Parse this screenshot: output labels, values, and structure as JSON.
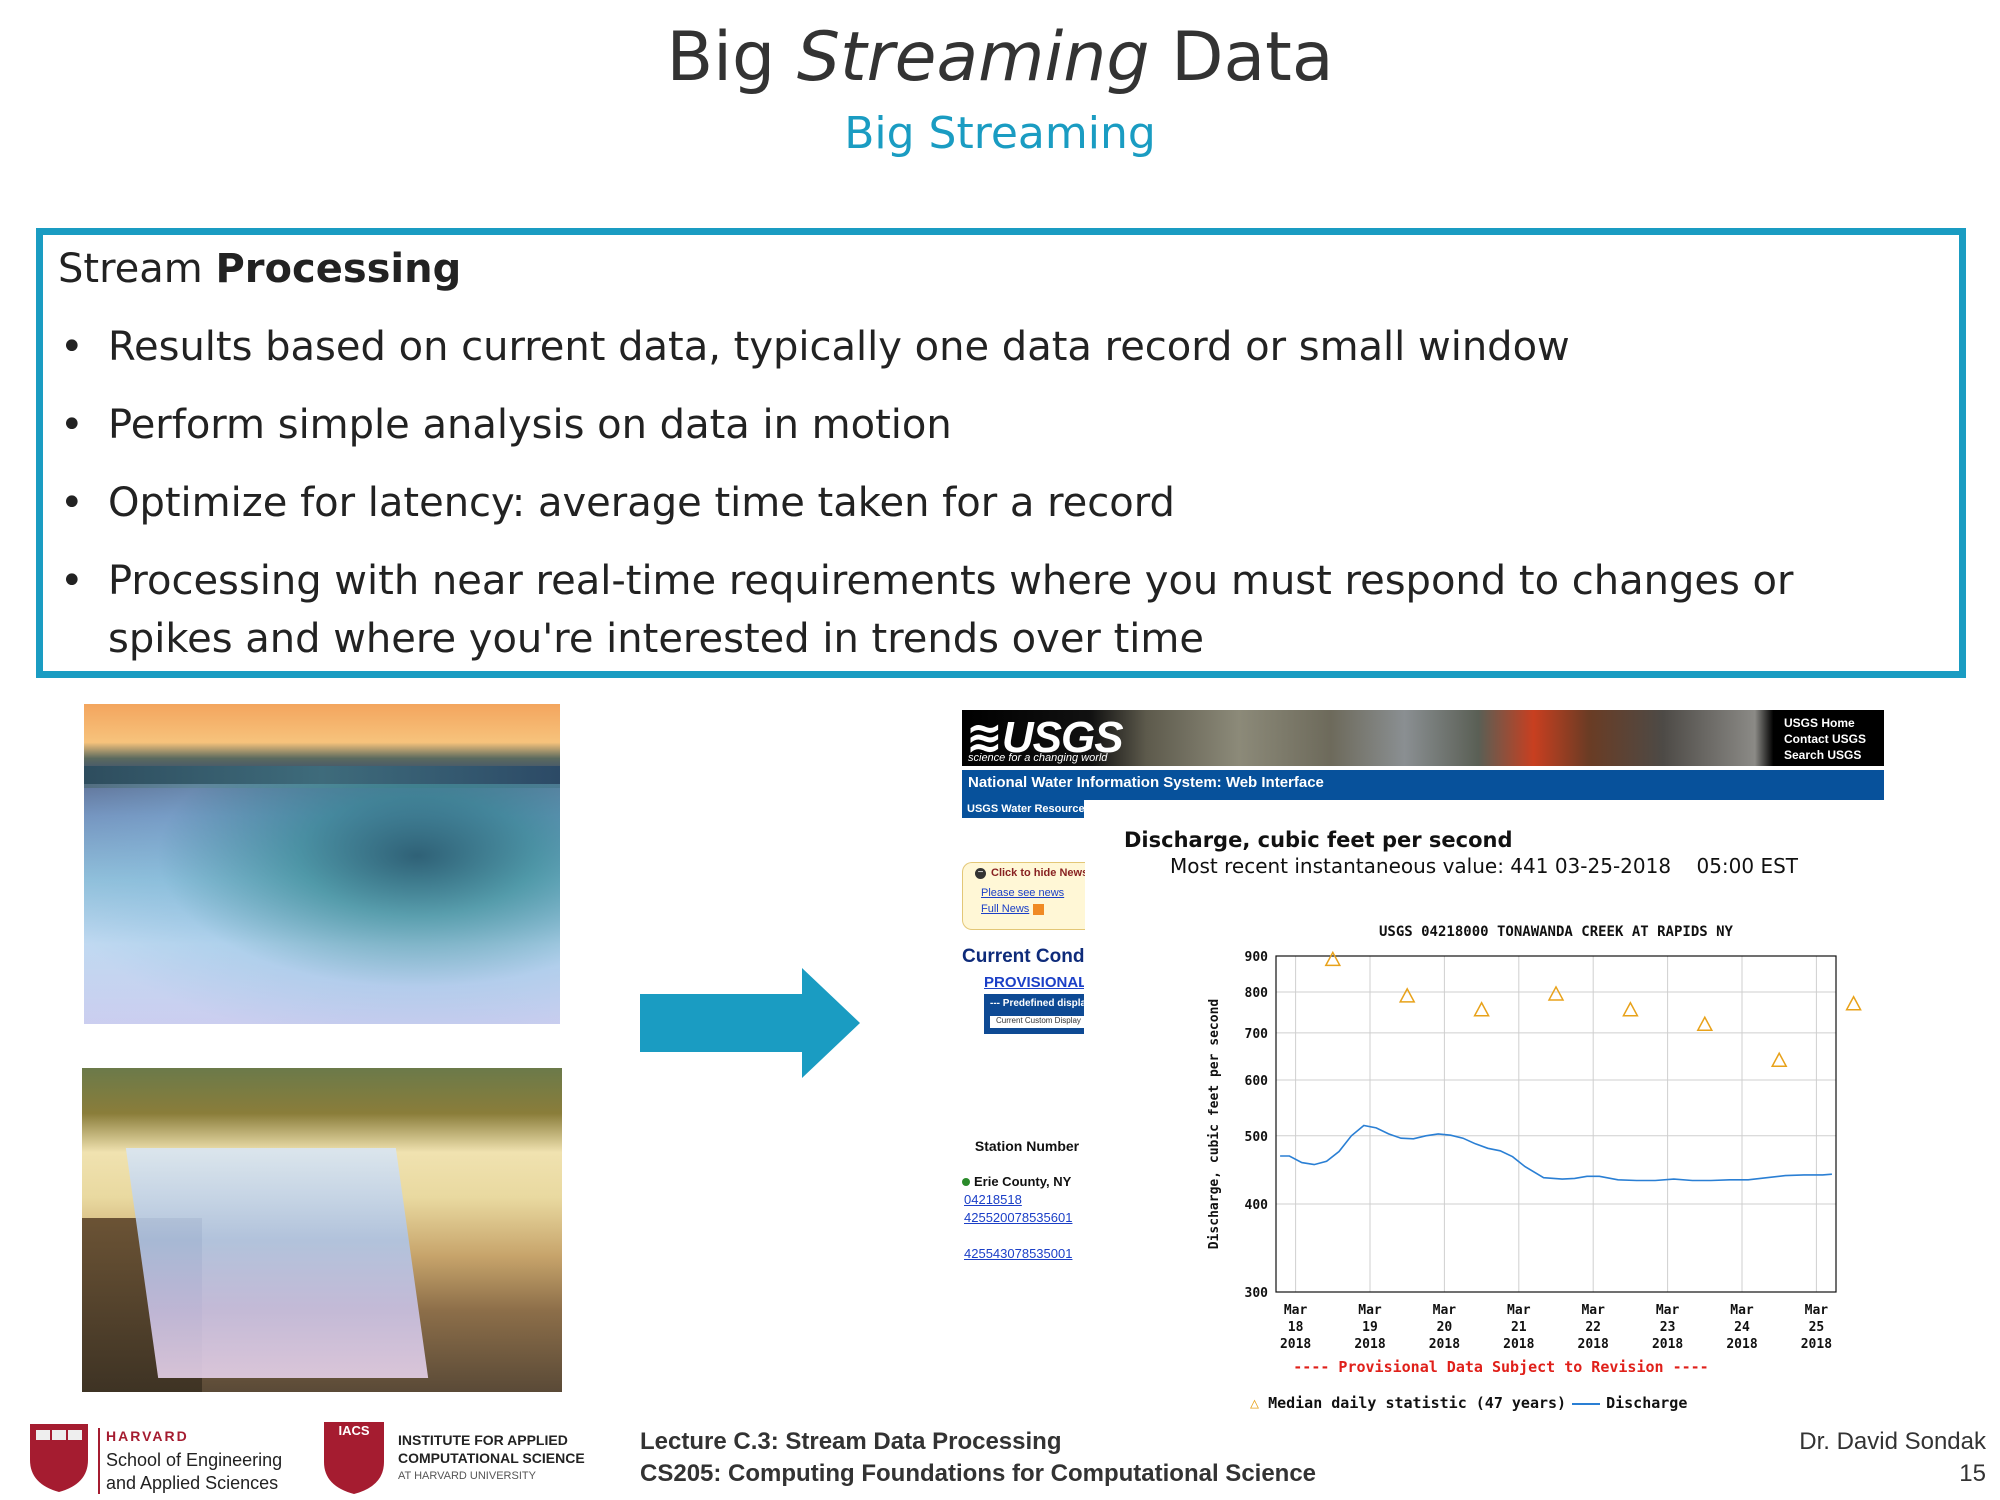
{
  "slide": {
    "title_plain_1": "Big ",
    "title_italic": "Streaming",
    "title_plain_2": " Data",
    "subtitle": "Big Streaming"
  },
  "box": {
    "heading_plain": "Stream ",
    "heading_bold": "Processing",
    "bullets": [
      "Results based on current data, typically one data record or small window",
      "Perform simple analysis on data in motion",
      "Optimize for latency: average time taken for a record",
      "Processing with near real-time requirements where you must respond to changes or spikes and where you're interested in trends over time"
    ]
  },
  "usgs": {
    "logo": "≋USGS",
    "tagline": "science for a changing world",
    "links": [
      "USGS Home",
      "Contact USGS",
      "Search USGS"
    ],
    "nwis_title": "National Water Information System: Web Interface",
    "water_resources": "USGS Water Resources",
    "news_hide": "Click to hide News",
    "news_link1": "Please see news",
    "news_link2": "Full News",
    "current_conditions": "Current Conditions",
    "provisional": "PROVISIONAL",
    "predefined": "--- Predefined displays",
    "custom": "Current Custom Display",
    "station_header": "Station Number",
    "county": "Erie County, NY",
    "stations": [
      "04218518",
      "425520078535601",
      "425543078535001"
    ]
  },
  "chart_header": {
    "title": "Discharge, cubic feet per second",
    "recent": "Most recent instantaneous value: 441 03-25-2018    05:00 EST",
    "provisional_note": "---- Provisional Data Subject to Revision ----",
    "legend_median": "Median daily statistic (47 years)",
    "legend_discharge": "Discharge"
  },
  "chart_data": {
    "type": "line",
    "title": "USGS 04218000 TONAWANDA CREEK AT RAPIDS NY",
    "ylabel": "Discharge, cubic feet per second",
    "y_scale": "log",
    "ylim": [
      300,
      900
    ],
    "yticks": [
      300,
      400,
      500,
      600,
      700,
      800,
      900
    ],
    "xlim": [
      "2018-03-18T00:00",
      "2018-03-25T00:00"
    ],
    "xticks": [
      [
        "Mar",
        "18",
        "2018"
      ],
      [
        "Mar",
        "19",
        "2018"
      ],
      [
        "Mar",
        "20",
        "2018"
      ],
      [
        "Mar",
        "21",
        "2018"
      ],
      [
        "Mar",
        "22",
        "2018"
      ],
      [
        "Mar",
        "23",
        "2018"
      ],
      [
        "Mar",
        "24",
        "2018"
      ],
      [
        "Mar",
        "25",
        "2018"
      ]
    ],
    "grid": true,
    "legend_position": "bottom",
    "colors": {
      "median": "#e8a21a",
      "discharge": "#2a7fd4"
    },
    "series": [
      {
        "name": "Median daily statistic (47 years)",
        "marker": "triangle",
        "x": [
          "2018-03-18",
          "2018-03-19",
          "2018-03-20",
          "2018-03-21",
          "2018-03-22",
          "2018-03-23",
          "2018-03-24",
          "2018-03-25"
        ],
        "y": [
          890,
          790,
          755,
          795,
          755,
          720,
          640,
          770
        ]
      },
      {
        "name": "Discharge",
        "x": [
          "2018-03-17T19:00",
          "2018-03-17T22:00",
          "2018-03-18T02:00",
          "2018-03-18T06:00",
          "2018-03-18T10:00",
          "2018-03-18T14:00",
          "2018-03-18T18:00",
          "2018-03-18T22:00",
          "2018-03-19T02:00",
          "2018-03-19T06:00",
          "2018-03-19T10:00",
          "2018-03-19T14:00",
          "2018-03-19T18:00",
          "2018-03-19T22:00",
          "2018-03-20T02:00",
          "2018-03-20T06:00",
          "2018-03-20T10:00",
          "2018-03-20T14:00",
          "2018-03-20T18:00",
          "2018-03-20T22:00",
          "2018-03-21T02:00",
          "2018-03-21T08:00",
          "2018-03-21T14:00",
          "2018-03-21T18:00",
          "2018-03-21T22:00",
          "2018-03-22T02:00",
          "2018-03-22T08:00",
          "2018-03-22T14:00",
          "2018-03-22T20:00",
          "2018-03-23T02:00",
          "2018-03-23T08:00",
          "2018-03-23T14:00",
          "2018-03-23T20:00",
          "2018-03-24T02:00",
          "2018-03-24T08:00",
          "2018-03-24T14:00",
          "2018-03-24T20:00",
          "2018-03-25T02:00",
          "2018-03-25T05:00"
        ],
        "y": [
          468,
          468,
          458,
          455,
          460,
          475,
          500,
          517,
          513,
          503,
          496,
          495,
          500,
          503,
          501,
          496,
          487,
          480,
          476,
          467,
          452,
          436,
          434,
          435,
          438,
          438,
          433,
          432,
          432,
          434,
          432,
          432,
          433,
          433,
          436,
          439,
          440,
          440,
          441
        ]
      }
    ]
  },
  "footer": {
    "harvard": "HARVARD",
    "seas_line1": "School of Engineering",
    "seas_line2": "and Applied Sciences",
    "iacs_badge": "IACS",
    "iacs_line1": "INSTITUTE FOR APPLIED",
    "iacs_line2": "COMPUTATIONAL SCIENCE",
    "iacs_line3": "AT HARVARD UNIVERSITY",
    "lecture": "Lecture C.3: Stream Data Processing",
    "course": "CS205: Computing Foundations for Computational Science",
    "author": "Dr. David Sondak",
    "page": "15"
  }
}
